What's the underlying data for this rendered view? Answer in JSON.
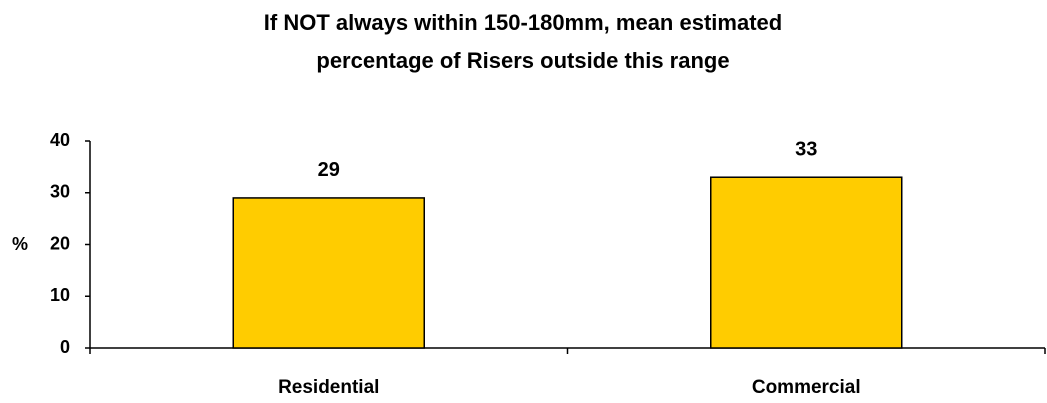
{
  "chart_data": {
    "type": "bar",
    "title": [
      "If NOT always within 150-180mm, mean estimated",
      "percentage of Risers outside this range"
    ],
    "y_label": "%",
    "categories": [
      "Residential",
      "Commercial"
    ],
    "values": [
      29,
      33
    ],
    "color": "#ffcc00",
    "ylim": [
      0,
      40
    ],
    "yticks": [
      0,
      10,
      20,
      30,
      40
    ],
    "grid": false
  }
}
